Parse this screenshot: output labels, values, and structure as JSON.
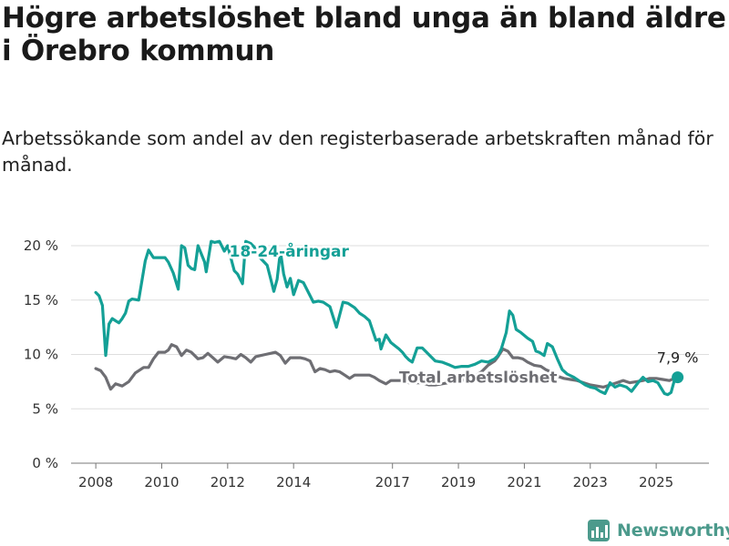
{
  "header": {
    "title": "Högre arbetslöshet bland unga än bland äldre i Örebro kommun",
    "subtitle": "Arbetssökande som andel av den registerbaserade arbetskraften månad för månad."
  },
  "branding": {
    "name": "Newsworthy"
  },
  "chart_data": {
    "type": "line",
    "title": "Högre arbetslöshet bland unga än bland äldre i Örebro kommun",
    "subtitle": "Arbetssökande som andel av den registerbaserade arbetskraften månad för månad.",
    "xlim": [
      2007.25,
      2026.6
    ],
    "ylim": [
      0,
      20
    ],
    "yticks": [
      0,
      5,
      10,
      15,
      20
    ],
    "ytick_labels": [
      "0 %",
      "5 %",
      "10 %",
      "15 %",
      "20 %"
    ],
    "xticks": [
      2008,
      2010,
      2012,
      2014,
      2017,
      2019,
      2021,
      2023,
      2025
    ],
    "xtick_labels": [
      "2008",
      "2010",
      "2012",
      "2014",
      "2017",
      "2019",
      "2021",
      "2023",
      "2025"
    ],
    "grid": true,
    "end_label": "7,9 %",
    "series": [
      {
        "name": "18-24-åringar",
        "color": "#14a096",
        "label_at": [
          2012.05,
          19.0
        ],
        "x": [
          2008.0,
          2008.1,
          2008.2,
          2008.3,
          2008.4,
          2008.5,
          2008.6,
          2008.7,
          2008.8,
          2008.9,
          2009.0,
          2009.1,
          2009.3,
          2009.5,
          2009.6,
          2009.75,
          2009.9,
          2010.1,
          2010.2,
          2010.35,
          2010.5,
          2010.6,
          2010.7,
          2010.8,
          2010.9,
          2011.0,
          2011.1,
          2011.3,
          2011.35,
          2011.5,
          2011.6,
          2011.75,
          2011.9,
          2012.0,
          2012.2,
          2012.3,
          2012.45,
          2012.55,
          2012.7,
          2012.8,
          2012.95,
          2013.2,
          2013.3,
          2013.4,
          2013.5,
          2013.6,
          2013.7,
          2013.8,
          2013.9,
          2014.0,
          2014.15,
          2014.3,
          2014.5,
          2014.6,
          2014.75,
          2014.9,
          2015.1,
          2015.3,
          2015.5,
          2015.65,
          2015.75,
          2015.85,
          2016.0,
          2016.15,
          2016.3,
          2016.5,
          2016.6,
          2016.65,
          2016.8,
          2016.95,
          2017.2,
          2017.3,
          2017.4,
          2017.5,
          2017.6,
          2017.75,
          2017.9,
          2018.1,
          2018.3,
          2018.5,
          2018.75,
          2018.9,
          2019.1,
          2019.3,
          2019.5,
          2019.7,
          2019.9,
          2020.1,
          2020.2,
          2020.3,
          2020.45,
          2020.55,
          2020.65,
          2020.75,
          2020.9,
          2021.1,
          2021.25,
          2021.35,
          2021.45,
          2021.6,
          2021.7,
          2021.85,
          2022.0,
          2022.15,
          2022.3,
          2022.5,
          2022.7,
          2022.85,
          2023.0,
          2023.15,
          2023.3,
          2023.45,
          2023.6,
          2023.75,
          2023.9,
          2024.1,
          2024.25,
          2024.45,
          2024.6,
          2024.75,
          2024.9,
          2025.05,
          2025.15,
          2025.25,
          2025.35,
          2025.45,
          2025.55,
          2025.65
        ],
        "y": [
          15.7,
          15.4,
          14.5,
          9.9,
          12.8,
          13.3,
          13.1,
          12.9,
          13.3,
          13.8,
          14.9,
          15.1,
          15.0,
          18.6,
          19.6,
          18.9,
          18.9,
          18.9,
          18.5,
          17.5,
          16.0,
          20.0,
          19.8,
          18.2,
          17.9,
          17.8,
          20.0,
          18.5,
          17.6,
          20.4,
          20.3,
          20.4,
          19.5,
          20.0,
          17.7,
          17.4,
          16.5,
          20.4,
          20.2,
          19.9,
          19.0,
          18.2,
          17.0,
          15.8,
          16.9,
          19.5,
          17.4,
          16.2,
          17.0,
          15.5,
          16.8,
          16.6,
          15.4,
          14.8,
          14.9,
          14.8,
          14.4,
          12.5,
          14.8,
          14.7,
          14.5,
          14.3,
          13.8,
          13.5,
          13.1,
          11.3,
          11.4,
          10.5,
          11.8,
          11.1,
          10.5,
          10.2,
          9.8,
          9.5,
          9.3,
          10.6,
          10.6,
          10.0,
          9.4,
          9.3,
          9.0,
          8.8,
          8.9,
          8.9,
          9.1,
          9.4,
          9.3,
          9.6,
          9.9,
          10.5,
          12.0,
          14.0,
          13.6,
          12.3,
          12.0,
          11.5,
          11.2,
          10.3,
          10.2,
          9.9,
          11.0,
          10.7,
          9.6,
          8.6,
          8.2,
          7.9,
          7.5,
          7.2,
          7.0,
          6.9,
          6.6,
          6.4,
          7.4,
          7.0,
          7.2,
          7.0,
          6.6,
          7.4,
          7.9,
          7.5,
          7.6,
          7.4,
          6.9,
          6.4,
          6.3,
          6.5,
          7.6,
          7.9
        ]
      },
      {
        "name": "Total arbetslöshet",
        "color": "#6e6e73",
        "label_at": [
          2017.2,
          7.4
        ],
        "x": [
          2008.0,
          2008.15,
          2008.3,
          2008.45,
          2008.6,
          2008.8,
          2009.0,
          2009.2,
          2009.45,
          2009.6,
          2009.75,
          2009.9,
          2010.1,
          2010.2,
          2010.3,
          2010.45,
          2010.6,
          2010.75,
          2010.9,
          2011.1,
          2011.25,
          2011.4,
          2011.55,
          2011.7,
          2011.9,
          2012.1,
          2012.25,
          2012.4,
          2012.55,
          2012.7,
          2012.85,
          2013.0,
          2013.15,
          2013.3,
          2013.45,
          2013.6,
          2013.75,
          2013.9,
          2014.05,
          2014.2,
          2014.35,
          2014.5,
          2014.65,
          2014.8,
          2014.95,
          2015.1,
          2015.25,
          2015.4,
          2015.55,
          2015.7,
          2015.85,
          2016.0,
          2016.15,
          2016.3,
          2016.45,
          2016.6,
          2016.8,
          2016.95,
          2017.1,
          2017.3,
          2017.5,
          2017.7,
          2017.9,
          2018.1,
          2018.3,
          2018.5,
          2018.7,
          2018.9,
          2019.1,
          2019.3,
          2019.5,
          2019.7,
          2019.9,
          2020.1,
          2020.2,
          2020.35,
          2020.5,
          2020.65,
          2020.8,
          2020.95,
          2021.1,
          2021.3,
          2021.5,
          2021.65,
          2021.8,
          2022.0,
          2022.2,
          2022.4,
          2022.6,
          2022.8,
          2023.0,
          2023.2,
          2023.4,
          2023.6,
          2023.8,
          2024.0,
          2024.2,
          2024.4,
          2024.6,
          2024.8,
          2025.0,
          2025.2,
          2025.4,
          2025.55,
          2025.65
        ],
        "y": [
          8.7,
          8.5,
          7.9,
          6.8,
          7.3,
          7.1,
          7.5,
          8.3,
          8.8,
          8.8,
          9.6,
          10.2,
          10.2,
          10.4,
          10.9,
          10.7,
          9.9,
          10.4,
          10.2,
          9.6,
          9.7,
          10.1,
          9.7,
          9.3,
          9.8,
          9.7,
          9.6,
          10.0,
          9.7,
          9.3,
          9.8,
          9.9,
          10.0,
          10.1,
          10.2,
          9.9,
          9.2,
          9.7,
          9.7,
          9.7,
          9.6,
          9.4,
          8.4,
          8.7,
          8.6,
          8.4,
          8.5,
          8.4,
          8.1,
          7.8,
          8.1,
          8.1,
          8.1,
          8.1,
          7.9,
          7.6,
          7.3,
          7.6,
          7.6,
          7.6,
          7.4,
          7.4,
          7.4,
          7.2,
          7.2,
          7.3,
          7.4,
          7.5,
          7.6,
          7.8,
          8.0,
          8.4,
          9.0,
          9.4,
          9.8,
          10.5,
          10.3,
          9.7,
          9.7,
          9.6,
          9.3,
          9.0,
          8.9,
          8.6,
          8.4,
          8.0,
          7.8,
          7.7,
          7.6,
          7.4,
          7.2,
          7.1,
          7.0,
          7.2,
          7.4,
          7.6,
          7.4,
          7.5,
          7.6,
          7.8,
          7.8,
          7.7,
          7.6,
          7.8,
          7.9
        ]
      }
    ]
  }
}
